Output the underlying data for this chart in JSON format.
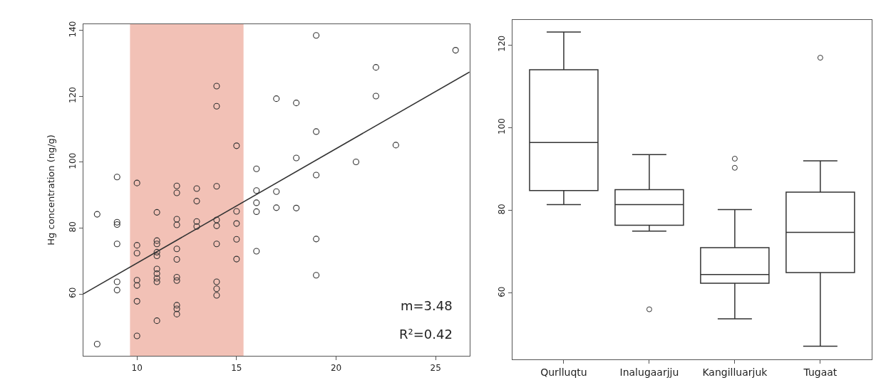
{
  "chart_data": [
    {
      "type": "scatter",
      "ylabel": "Hg concentration (ng/g)",
      "xlim": [
        7.3,
        26.7
      ],
      "ylim": [
        41.2,
        142
      ],
      "xticks": [
        10,
        15,
        20,
        25
      ],
      "yticks": [
        60,
        80,
        100,
        120,
        140
      ],
      "series": [
        {
          "type": "scatter",
          "marker": "circle",
          "color": "#333333",
          "x": [
            8,
            8,
            9,
            9,
            9,
            9,
            9,
            9,
            10,
            10,
            10,
            10,
            10,
            10,
            10,
            11,
            11,
            11,
            11,
            11,
            11,
            11,
            11,
            11,
            11,
            12,
            12,
            12,
            12,
            12,
            12,
            12,
            12,
            12,
            12,
            12,
            13,
            13,
            13,
            13,
            14,
            14,
            14,
            14,
            14,
            14,
            14,
            14,
            14,
            15,
            15,
            15,
            15,
            15,
            16,
            16,
            16,
            16,
            16,
            17,
            17,
            17,
            18,
            18,
            18,
            19,
            19,
            19,
            19,
            19,
            21,
            22,
            22,
            23,
            26
          ],
          "values": [
            84.2,
            44.8,
            95.5,
            81.8,
            81.1,
            75.2,
            63.7,
            61.2,
            93.7,
            74.8,
            72.4,
            64.2,
            62.6,
            57.8,
            47.3,
            84.8,
            76.2,
            75.2,
            72.7,
            71.6,
            67.6,
            66.2,
            64.8,
            63.7,
            51.9,
            92.8,
            90.7,
            82.7,
            81.0,
            73.7,
            70.5,
            65.1,
            64.1,
            56.6,
            55.5,
            53.9,
            92.0,
            88.2,
            82.0,
            80.5,
            123.1,
            117.0,
            92.7,
            82.5,
            80.7,
            75.2,
            63.7,
            61.6,
            59.6,
            105.0,
            85.1,
            81.4,
            76.6,
            70.6,
            98.0,
            91.4,
            87.7,
            85.0,
            73.0,
            119.3,
            91.1,
            86.2,
            118.0,
            101.3,
            86.1,
            138.5,
            109.3,
            96.1,
            76.7,
            65.7,
            100.1,
            128.8,
            120.1,
            105.2,
            134.0
          ]
        },
        {
          "type": "line",
          "color": "#333333",
          "line_style": "solid",
          "x": [
            7.3,
            26.7
          ],
          "values": [
            60,
            127.4
          ]
        }
      ],
      "bands": [
        {
          "axis": "x",
          "from": 9.65,
          "to": 15.35,
          "color": "#f2c1b6"
        }
      ],
      "annotations": [
        "m=3.48",
        "R²=0.42"
      ]
    },
    {
      "type": "box",
      "categories": [
        "Qurlluqtu",
        "Inalugaarjju",
        "Kangilluarjuk",
        "Tugaat"
      ],
      "ylim": [
        44,
        126
      ],
      "yticks": [
        60,
        80,
        100,
        120
      ],
      "color": "#333333",
      "boxes": [
        {
          "low": 81.4,
          "q1": 84.8,
          "median": 96.4,
          "q3": 114.0,
          "high": 123.1
        },
        {
          "low": 75.0,
          "q1": 76.4,
          "median": 81.4,
          "q3": 85.0,
          "high": 93.5,
          "outliers": [
            56.1
          ]
        },
        {
          "low": 53.8,
          "q1": 62.4,
          "median": 64.5,
          "q3": 71.0,
          "high": 80.2,
          "outliers": [
            92.5,
            90.3
          ]
        },
        {
          "low": 47.2,
          "q1": 65.0,
          "median": 74.7,
          "q3": 84.4,
          "high": 92.0,
          "outliers": [
            116.9
          ]
        }
      ]
    }
  ]
}
